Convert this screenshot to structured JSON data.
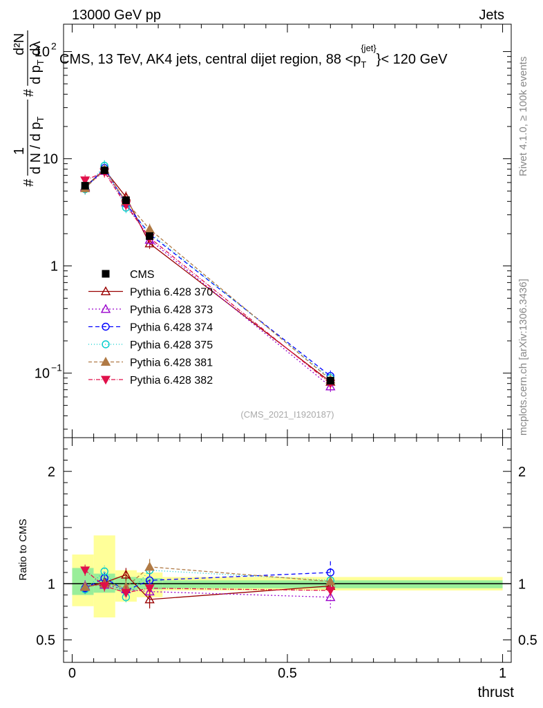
{
  "header": {
    "energy_label": "13000 GeV pp",
    "process_label": "Jets",
    "rivet_label": "Rivet 4.1.0, ≥ 100k events",
    "source_label": "mcplots.cern.ch [arXiv:1306.3436]",
    "analysis_label": "(CMS_2021_I1920187)"
  },
  "chart_data": {
    "type": "line",
    "title": "CMS, 13 TeV, AK4 jets, central dijet region, 88 <p_T^{jet}< 120 GeV",
    "title_parts": {
      "prefix": "CMS, 13 TeV, AK4 jets, central dijet region, 88 <p",
      "sub": "T",
      "sup": "{jet}",
      "suffix": "}< 120 GeV"
    },
    "xlabel": "thrust",
    "ylabel": "1/dN/dp_T  d²N/(dp_T dλ)",
    "ylabel_parts": {
      "num": "1",
      "den": "d N / d p",
      "sub": "T",
      "hash": "#",
      "frac_num": "d²N",
      "frac_den": "d p",
      "frac_den_sub": "T",
      "frac_den_tail": " dλ"
    },
    "ratio_ylabel": "Ratio to CMS",
    "xlim": [
      -0.02,
      1.02
    ],
    "ylim_main": [
      0.025,
      180
    ],
    "ylim_ratio": [
      0.3,
      2.3
    ],
    "yscale_main": "log",
    "x_ticks": [
      0,
      0.5,
      1
    ],
    "x_tick_labels": [
      "0",
      "0.5",
      "1"
    ],
    "main_y_tick_labels": [
      {
        "value": 0.1,
        "base": "10",
        "exp": "−1"
      },
      {
        "value": 1,
        "base": "1",
        "exp": ""
      },
      {
        "value": 10,
        "base": "10",
        "exp": ""
      },
      {
        "value": 100,
        "base": "10",
        "exp": "2"
      }
    ],
    "ratio_y_ticks": [
      0.5,
      1,
      2
    ],
    "ratio_y_tick_labels": [
      "0.5",
      "1",
      "2"
    ],
    "data": {
      "name": "CMS",
      "x": [
        0.03,
        0.075,
        0.125,
        0.18,
        0.6
      ],
      "x_edges": [
        [
          0.0,
          0.05
        ],
        [
          0.05,
          0.1
        ],
        [
          0.1,
          0.15
        ],
        [
          0.15,
          0.21
        ],
        [
          0.21,
          1.0
        ]
      ],
      "y": [
        5.6,
        7.8,
        4.1,
        1.9,
        0.085
      ],
      "band_inner": [
        [
          0.9,
          1.14
        ],
        [
          0.92,
          1.09
        ],
        [
          0.94,
          1.06
        ],
        [
          0.95,
          1.05
        ],
        [
          0.96,
          1.03
        ]
      ],
      "band_outer": [
        [
          0.8,
          1.26
        ],
        [
          0.7,
          1.43
        ],
        [
          0.84,
          1.12
        ],
        [
          0.88,
          1.1
        ],
        [
          0.94,
          1.06
        ]
      ]
    },
    "series": [
      {
        "name": "Pythia 6.428 370",
        "color": "#990000",
        "dash": "",
        "marker": "triangle-open",
        "y": [
          5.5,
          7.9,
          4.4,
          1.62,
          0.083
        ],
        "ratio": [
          0.97,
          1.01,
          1.08,
          0.86,
          0.98
        ],
        "ratio_err": [
          0.05,
          0.05,
          0.06,
          0.08,
          0.05
        ]
      },
      {
        "name": "Pythia 6.428 373",
        "color": "#9900cc",
        "dash": "2,3",
        "marker": "triangle-open",
        "y": [
          5.4,
          7.7,
          3.9,
          1.75,
          0.075
        ],
        "ratio": [
          0.98,
          0.99,
          0.95,
          0.93,
          0.88
        ],
        "ratio_err": [
          0.05,
          0.05,
          0.06,
          0.07,
          0.1
        ]
      },
      {
        "name": "Pythia 6.428 374",
        "color": "#0000ff",
        "dash": "6,4",
        "marker": "circle-open",
        "y": [
          5.3,
          8.2,
          3.8,
          1.98,
          0.094
        ],
        "ratio": [
          0.96,
          1.05,
          0.94,
          1.03,
          1.1
        ],
        "ratio_err": [
          0.05,
          0.05,
          0.06,
          0.07,
          0.1
        ]
      },
      {
        "name": "Pythia 6.428 375",
        "color": "#00cccc",
        "dash": "1,3",
        "marker": "circle-open",
        "y": [
          5.2,
          8.6,
          3.5,
          2.05,
          0.09
        ],
        "ratio": [
          0.95,
          1.11,
          0.88,
          1.12,
          1.03
        ],
        "ratio_err": [
          0.05,
          0.05,
          0.06,
          0.07,
          0.06
        ]
      },
      {
        "name": "Pythia 6.428 381",
        "color": "#b07a45",
        "dash": "5,3",
        "marker": "triangle-filled",
        "y": [
          5.3,
          7.9,
          4.0,
          2.2,
          0.087
        ],
        "ratio": [
          0.97,
          1.0,
          0.97,
          1.15,
          1.02
        ],
        "ratio_err": [
          0.05,
          0.05,
          0.06,
          0.07,
          0.05
        ]
      },
      {
        "name": "Pythia 6.428 382",
        "color": "#e0104a",
        "dash": "6,2,1,2",
        "marker": "triangle-down-filled",
        "y": [
          6.3,
          7.5,
          3.7,
          1.83,
          0.08
        ],
        "ratio": [
          1.12,
          0.98,
          0.92,
          0.96,
          0.94
        ],
        "ratio_err": [
          0.05,
          0.05,
          0.06,
          0.07,
          0.05
        ]
      }
    ]
  }
}
